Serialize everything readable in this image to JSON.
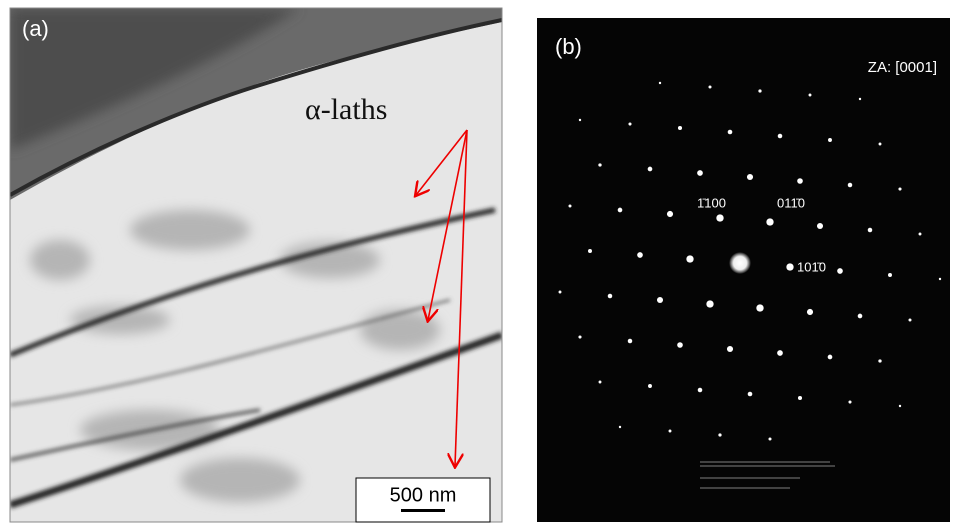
{
  "panel_a": {
    "label": "(a)",
    "annotation": "α-laths",
    "scale_bar": "500 nm"
  },
  "panel_b": {
    "label": "(b)",
    "zone_axis": "ZA: [0001]",
    "spots": [
      "1̄100",
      "011̄0",
      "101̄0"
    ]
  }
}
